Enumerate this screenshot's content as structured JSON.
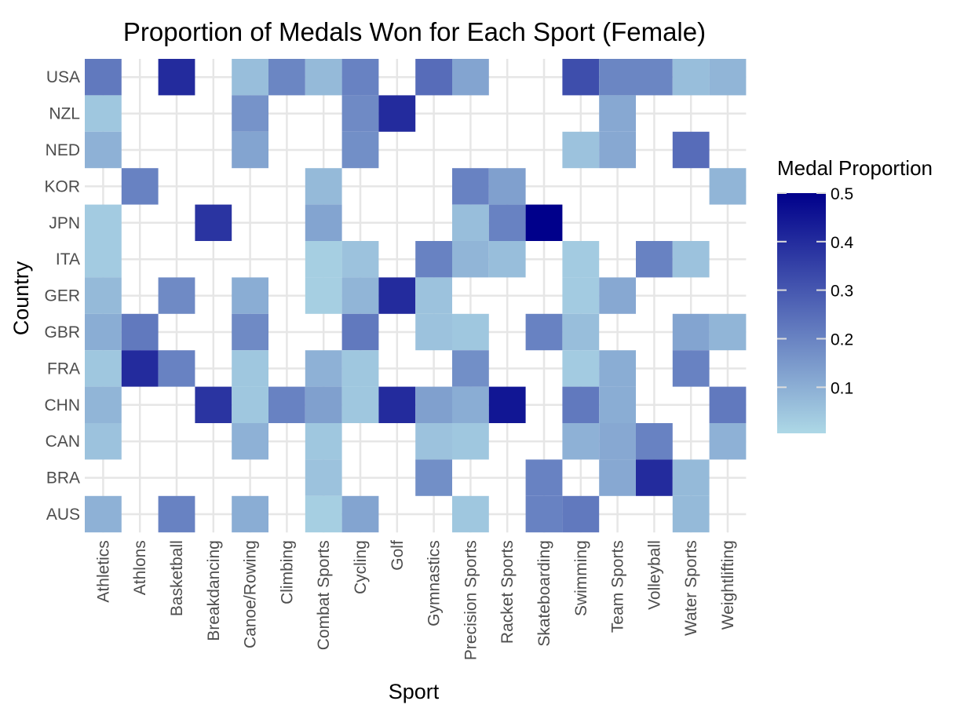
{
  "chart_data": {
    "type": "heatmap",
    "title": "Proportion of Medals Won for Each Sport (Female)",
    "xlabel": "Sport",
    "ylabel": "Country",
    "x_categories": [
      "Athletics",
      "Athlons",
      "Basketball",
      "Breakdancing",
      "Canoe/Rowing",
      "Climbing",
      "Combat Sports",
      "Cycling",
      "Golf",
      "Gymnastics",
      "Precision Sports",
      "Racket Sports",
      "Skateboarding",
      "Swimming",
      "Team Sports",
      "Volleyball",
      "Water Sports",
      "Weightlifting"
    ],
    "y_categories": [
      "USA",
      "NZL",
      "NED",
      "KOR",
      "JPN",
      "ITA",
      "GER",
      "GBR",
      "FRA",
      "CHN",
      "CAN",
      "BRA",
      "AUS"
    ],
    "values": [
      [
        0.22,
        null,
        0.4,
        null,
        0.06,
        0.19,
        0.07,
        0.2,
        null,
        0.25,
        0.12,
        null,
        null,
        0.32,
        0.19,
        0.19,
        0.06,
        0.08
      ],
      [
        0.04,
        null,
        null,
        null,
        0.16,
        null,
        null,
        0.18,
        0.4,
        null,
        null,
        null,
        null,
        null,
        0.11,
        null,
        null,
        null
      ],
      [
        0.09,
        null,
        null,
        null,
        0.12,
        null,
        null,
        0.17,
        null,
        null,
        null,
        null,
        null,
        0.05,
        0.11,
        null,
        0.25,
        null
      ],
      [
        null,
        0.2,
        null,
        null,
        null,
        null,
        0.07,
        null,
        null,
        null,
        0.2,
        0.13,
        null,
        null,
        null,
        null,
        null,
        0.08
      ],
      [
        0.03,
        null,
        null,
        0.38,
        null,
        null,
        0.12,
        null,
        null,
        null,
        0.06,
        0.2,
        0.5,
        null,
        null,
        null,
        null,
        null
      ],
      [
        0.03,
        null,
        null,
        null,
        null,
        null,
        0.02,
        0.05,
        null,
        0.2,
        0.08,
        0.06,
        null,
        0.03,
        null,
        0.2,
        0.05,
        null
      ],
      [
        0.07,
        null,
        0.18,
        null,
        0.1,
        null,
        0.02,
        0.08,
        0.4,
        0.05,
        null,
        null,
        null,
        0.03,
        0.11,
        null,
        null,
        null
      ],
      [
        0.1,
        0.22,
        null,
        null,
        0.18,
        null,
        null,
        0.22,
        null,
        0.05,
        0.04,
        null,
        0.2,
        0.06,
        null,
        null,
        0.12,
        0.08
      ],
      [
        0.04,
        0.4,
        0.2,
        null,
        0.04,
        null,
        0.09,
        0.04,
        null,
        null,
        0.17,
        null,
        null,
        0.03,
        0.1,
        null,
        0.2,
        null
      ],
      [
        0.08,
        null,
        null,
        0.38,
        0.04,
        0.2,
        0.13,
        0.04,
        0.4,
        0.13,
        0.1,
        0.45,
        null,
        0.22,
        0.1,
        null,
        null,
        0.22
      ],
      [
        0.05,
        null,
        null,
        null,
        0.09,
        null,
        0.04,
        null,
        null,
        0.05,
        0.04,
        null,
        null,
        0.09,
        0.11,
        0.2,
        null,
        0.09
      ],
      [
        null,
        null,
        null,
        null,
        null,
        null,
        0.05,
        null,
        null,
        0.17,
        null,
        null,
        0.2,
        null,
        0.11,
        0.4,
        0.07,
        null
      ],
      [
        0.09,
        null,
        0.2,
        null,
        0.1,
        null,
        0.02,
        0.12,
        null,
        null,
        0.04,
        null,
        0.2,
        0.22,
        null,
        null,
        0.07,
        null
      ]
    ],
    "color_scale": {
      "low": "#add8e6",
      "high": "#00008b",
      "min": 0,
      "max": 0.5
    },
    "legend": {
      "title": "Medal Proportion",
      "ticks": [
        "0.5",
        "0.4",
        "0.3",
        "0.2",
        "0.1"
      ],
      "tick_values": [
        0.5,
        0.4,
        0.3,
        0.2,
        0.1
      ],
      "position": "right"
    },
    "grid": true
  }
}
